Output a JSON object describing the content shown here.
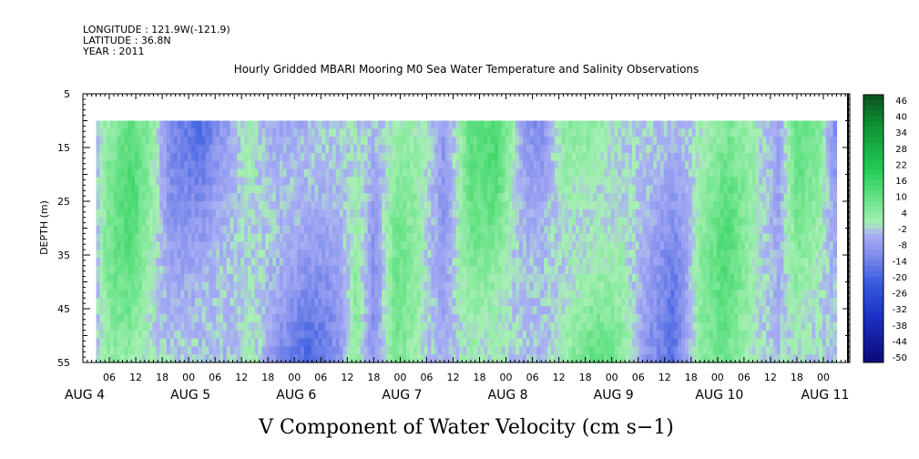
{
  "header": {
    "longitude": "LONGITUDE : 121.9W(-121.9)",
    "latitude": "LATITUDE : 36.8N",
    "year": "YEAR : 2011"
  },
  "chart_data": {
    "type": "heatmap",
    "title": "Hourly Gridded MBARI Mooring M0 Sea Water Temperature and Salinity Observations",
    "xlabel": "V Component of Water Velocity (cm s−1)",
    "ylabel": "DEPTH (m)",
    "y_axis": {
      "ticks": [
        "5",
        "15",
        "25",
        "35",
        "45",
        "55"
      ],
      "range": [
        5,
        55
      ],
      "inverted": true
    },
    "x_axis": {
      "hour_ticks": [
        "06",
        "12",
        "18",
        "00",
        "06",
        "12",
        "18",
        "00",
        "06",
        "12",
        "18",
        "00",
        "06",
        "12",
        "18",
        "00",
        "06",
        "12",
        "18",
        "00",
        "06",
        "12",
        "18",
        "00",
        "06",
        "12",
        "18",
        "00"
      ],
      "day_labels": [
        "AUG  4",
        "AUG  5",
        "AUG  6",
        "AUG  7",
        "AUG  8",
        "AUG  9",
        "AUG 10",
        "AUG 11"
      ],
      "range": [
        "AUG 4 00:00",
        "AUG 11 06:00"
      ]
    },
    "data_extent": {
      "time_start": "AUG 4 ~03:00",
      "time_end": "AUG 11 ~03:00",
      "depth_top": 10,
      "depth_bottom": 55
    },
    "colorbar": {
      "labels": [
        "46",
        "40",
        "34",
        "28",
        "22",
        "16",
        "10",
        "4",
        "-2",
        "-8",
        "-14",
        "-20",
        "-26",
        "-32",
        "-38",
        "-44",
        "-50"
      ],
      "min": -50,
      "max": 50,
      "step": 2,
      "colors": {
        "negative_low": "#0a0a7a",
        "negative_mid": "#3a5ce0",
        "near_zero_neg": "#a6aff2",
        "near_zero_pos": "#a8f0b4",
        "positive_mid": "#22cc55",
        "positive_high": "#0a5a1e"
      }
    },
    "pattern_note": "alternating vertical bands of slight negative (blue-lavender) and slight positive (light green) velocity, mostly within -20 to +16 cm/s",
    "bands": [
      {
        "t": 0,
        "v": -9
      },
      {
        "t": 6,
        "v": 7
      },
      {
        "t": 11,
        "v": 12
      },
      {
        "t": 16,
        "v": 3
      },
      {
        "t": 20,
        "v": -8
      },
      {
        "t": 27,
        "v": -13
      },
      {
        "t": 34,
        "v": -4
      },
      {
        "t": 38,
        "v": 6
      },
      {
        "t": 44,
        "v": -11
      },
      {
        "t": 51,
        "v": -15
      },
      {
        "t": 58,
        "v": -6
      },
      {
        "t": 62,
        "v": 5
      },
      {
        "t": 66,
        "v": -7
      },
      {
        "t": 71,
        "v": 8
      },
      {
        "t": 76,
        "v": 4
      },
      {
        "t": 82,
        "v": -6
      },
      {
        "t": 88,
        "v": 9
      },
      {
        "t": 94,
        "v": 12
      },
      {
        "t": 100,
        "v": -5
      },
      {
        "t": 104,
        "v": -10
      },
      {
        "t": 110,
        "v": 10
      },
      {
        "t": 116,
        "v": 14
      },
      {
        "t": 122,
        "v": 6
      },
      {
        "t": 128,
        "v": -6
      },
      {
        "t": 134,
        "v": -12
      },
      {
        "t": 140,
        "v": 5
      },
      {
        "t": 146,
        "v": 11
      },
      {
        "t": 152,
        "v": 3
      },
      {
        "t": 158,
        "v": -4
      },
      {
        "t": 162,
        "v": 9
      },
      {
        "t": 167,
        "v": 6
      },
      {
        "t": 171,
        "v": -9
      }
    ]
  }
}
